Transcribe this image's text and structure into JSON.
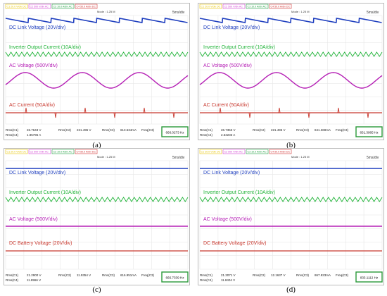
{
  "layout_labels": {
    "time_div": "5ms/div",
    "mode": "Mode : 1.25 M"
  },
  "channel_bar": [
    "C1 20.0 V/div DC",
    "C2 500 V/div AC",
    "C3 10.0 A/div AC",
    "C4 50.0 A/div DC"
  ],
  "colors": {
    "dc_link": "#1f3fbf",
    "inverter_current": "#22b43a",
    "ac_voltage": "#b520b5",
    "ac_current": "#c8382e",
    "frequency_box": "#2a9a3a"
  },
  "panels": [
    {
      "caption": "(a)",
      "labels": [
        "DC Link Voltage (20V/div)",
        "Inverter Output Current (10A/div)",
        "AC Voltage (500V/div)",
        "AC Current (50A/div)"
      ],
      "readouts": [
        "Rms(C1)",
        "26.7643 V",
        "Rms(C2)",
        "221.495 V",
        "Rms(C3)",
        "613.534mA",
        "Freq(C3)",
        "Rms(C4)",
        "1.85796 A"
      ],
      "frequency": "666.0273 Hz"
    },
    {
      "caption": "(b)",
      "labels": [
        "DC Link Voltage (20V/div)",
        "Inverter Output Current (10A/div)",
        "AC Voltage (500V/div)",
        "AC Current (50A/div)"
      ],
      "readouts": [
        "Rms(C1)",
        "26.7353 V",
        "Rms(C2)",
        "221.495 V",
        "Rms(C3)",
        "841.369mA",
        "Freq(C3)",
        "Rms(C4)",
        "2.53233 A"
      ],
      "frequency": "831.3985 Hz"
    },
    {
      "caption": "(c)",
      "labels": [
        "DC Link Voltage (20V/div)",
        "Inverter Output Current (10A/div)",
        "AC Voltage (500V/div)",
        "DC Battery Voltage (20V/div)"
      ],
      "readouts": [
        "Rms(C1)",
        "21.2900 V",
        "Rms(C2)",
        "11.9354 V",
        "Rms(C3)",
        "616.951mA",
        "Freq(C3)",
        "Rms(C4)",
        "11.8966 V"
      ],
      "frequency": "666.7339 Hz"
    },
    {
      "caption": "(d)",
      "labels": [
        "DC Link Voltage (20V/div)",
        "Inverter Output Current (10A/div)",
        "AC Voltage (500V/div)",
        "DC Battery Voltage (20V/div)"
      ],
      "readouts": [
        "Rms(C1)",
        "21.3071 V",
        "Rms(C2)",
        "12.1637 V",
        "Rms(C3)",
        "867.923mA",
        "Freq(C3)",
        "Rms(C4)",
        "11.8404 V"
      ],
      "frequency": "833.1112 Hz"
    }
  ],
  "chart_data": [
    {
      "type": "line",
      "series": [
        {
          "name": "DC Link Voltage (20V/div)",
          "shape": "sawtooth ripple",
          "cycles": 8
        },
        {
          "name": "Inverter Output Current (10A/div)",
          "shape": "high-frequency zigzag"
        },
        {
          "name": "AC Voltage (500V/div)",
          "shape": "sine",
          "cycles": 3.2
        },
        {
          "name": "AC Current (50A/div)",
          "shape": "flat with spikes",
          "spikes": 6
        }
      ]
    },
    {
      "type": "line",
      "series": [
        {
          "name": "DC Link Voltage (20V/div)",
          "shape": "sawtooth ripple",
          "cycles": 8
        },
        {
          "name": "Inverter Output Current (10A/div)",
          "shape": "high-frequency zigzag"
        },
        {
          "name": "AC Voltage (500V/div)",
          "shape": "sine",
          "cycles": 3.2
        },
        {
          "name": "AC Current (50A/div)",
          "shape": "flat with spikes",
          "spikes": 6
        }
      ]
    },
    {
      "type": "line",
      "series": [
        {
          "name": "DC Link Voltage (20V/div)",
          "shape": "flat"
        },
        {
          "name": "Inverter Output Current (10A/div)",
          "shape": "high-frequency zigzag"
        },
        {
          "name": "AC Voltage (500V/div)",
          "shape": "flat"
        },
        {
          "name": "DC Battery Voltage (20V/div)",
          "shape": "flat"
        }
      ]
    },
    {
      "type": "line",
      "series": [
        {
          "name": "DC Link Voltage (20V/div)",
          "shape": "flat"
        },
        {
          "name": "Inverter Output Current (10A/div)",
          "shape": "high-frequency zigzag"
        },
        {
          "name": "AC Voltage (500V/div)",
          "shape": "flat"
        },
        {
          "name": "DC Battery Voltage (20V/div)",
          "shape": "flat"
        }
      ]
    }
  ]
}
